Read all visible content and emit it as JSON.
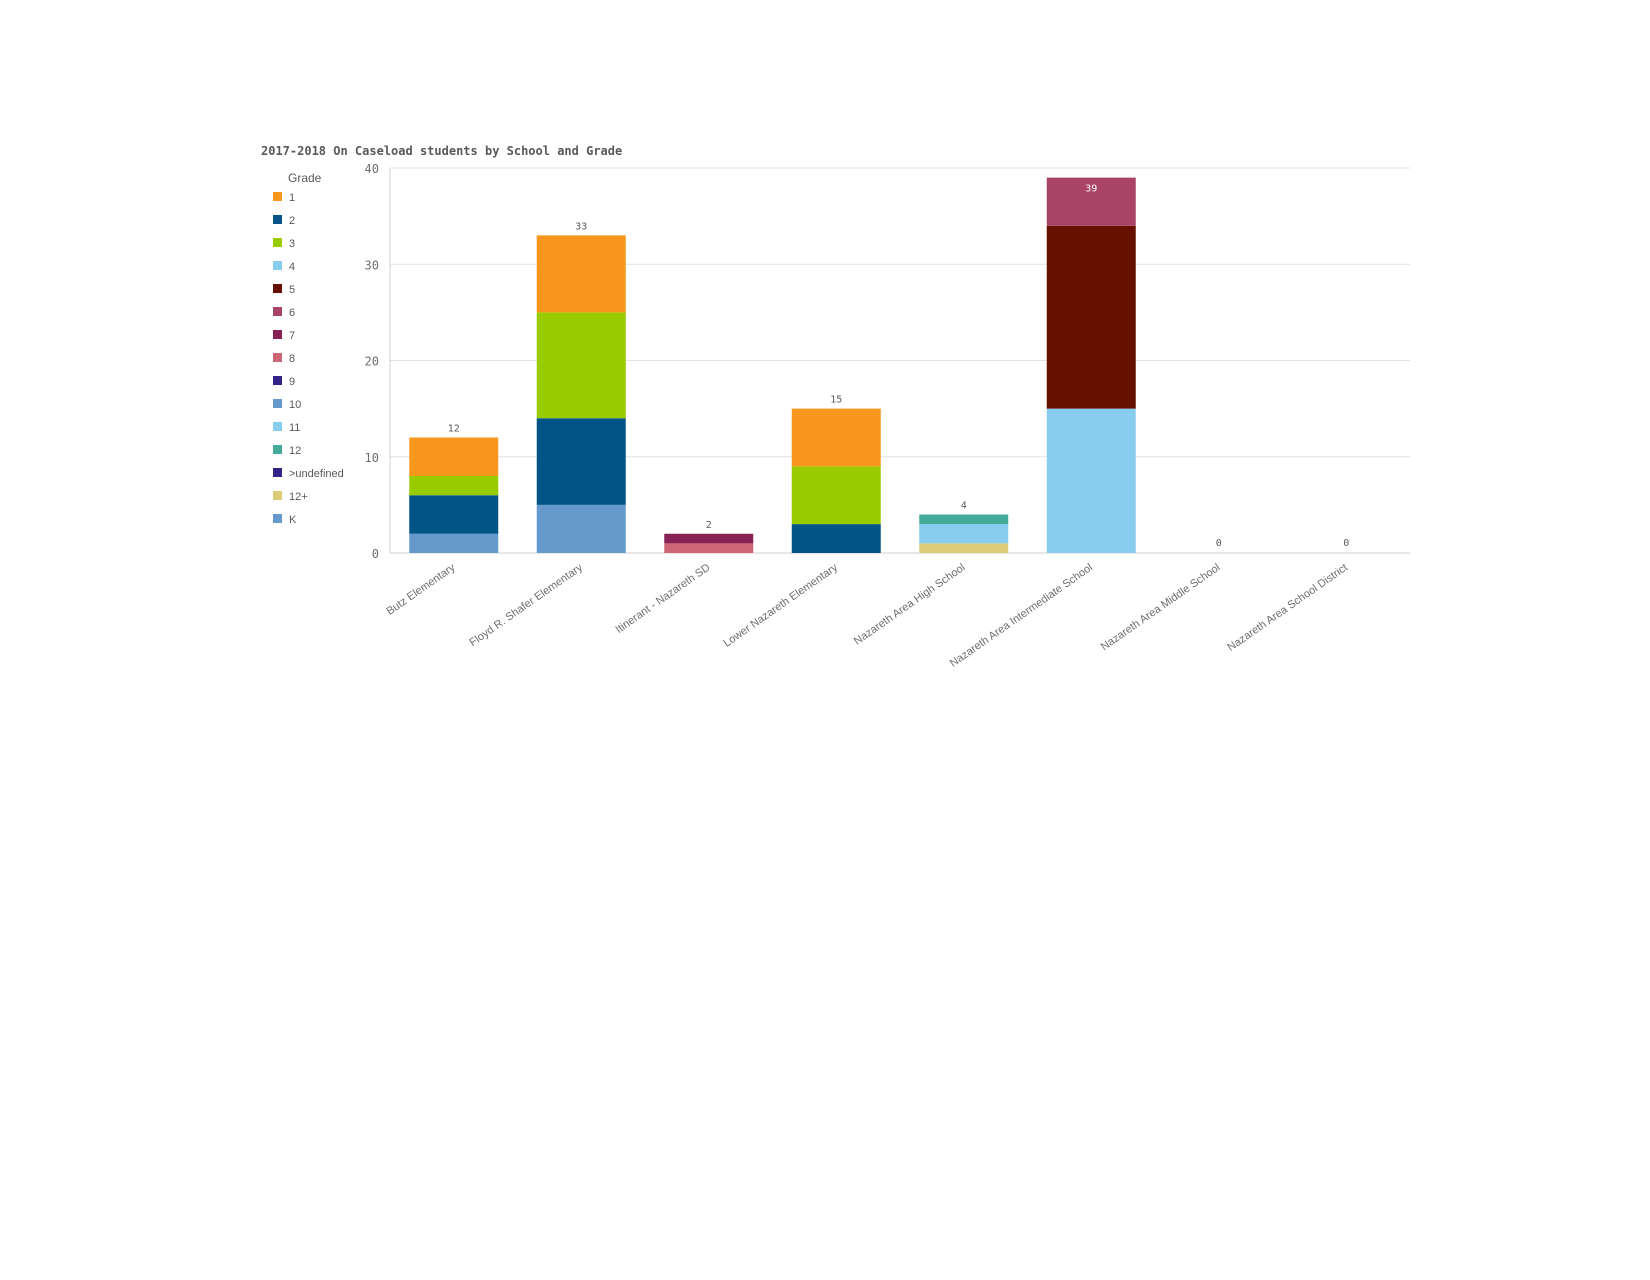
{
  "chart_data": {
    "type": "bar",
    "stacked": true,
    "title": "2017-2018 On Caseload students by School and Grade",
    "legend_title": "Grade",
    "legend_position": "left",
    "grid": true,
    "ylim": [
      0,
      40
    ],
    "yticks": [
      "0",
      "10",
      "20",
      "30",
      "40"
    ],
    "categories": [
      "Butz Elementary",
      "Floyd R. Shafer Elementary",
      "Itinerant - Nazareth SD",
      "Lower Nazareth Elementary",
      "Nazareth Area High School",
      "Nazareth Area Intermediate School",
      "Nazareth Area Middle School",
      "Nazareth Area School District"
    ],
    "totals": [
      "12",
      "33",
      "2",
      "15",
      "4",
      "39",
      "0",
      "0"
    ],
    "series": [
      {
        "name": "1",
        "color": "#f8961e",
        "values": [
          4,
          8,
          0,
          6,
          0,
          0,
          0,
          0
        ]
      },
      {
        "name": "2",
        "color": "#005586",
        "values": [
          4,
          9,
          0,
          3,
          0,
          0,
          0,
          0
        ]
      },
      {
        "name": "3",
        "color": "#99cc00",
        "values": [
          2,
          11,
          0,
          6,
          0,
          0,
          0,
          0
        ]
      },
      {
        "name": "4",
        "color": "#88ccee",
        "values": [
          0,
          0,
          0,
          0,
          0,
          15,
          0,
          0
        ]
      },
      {
        "name": "5",
        "color": "#661100",
        "values": [
          0,
          0,
          0,
          0,
          0,
          19,
          0,
          0
        ]
      },
      {
        "name": "6",
        "color": "#aa4466",
        "values": [
          0,
          0,
          0,
          0,
          0,
          5,
          0,
          0
        ]
      },
      {
        "name": "7",
        "color": "#882255",
        "values": [
          0,
          0,
          1,
          0,
          0,
          0,
          0,
          0
        ]
      },
      {
        "name": "8",
        "color": "#cc6677",
        "values": [
          0,
          0,
          1,
          0,
          0,
          0,
          0,
          0
        ]
      },
      {
        "name": "9",
        "color": "#332288",
        "values": [
          0,
          0,
          0,
          0,
          0,
          0,
          0,
          0
        ]
      },
      {
        "name": "10",
        "color": "#6699cc",
        "values": [
          0,
          0,
          0,
          0,
          0,
          0,
          0,
          0
        ]
      },
      {
        "name": "11",
        "color": "#88ccee",
        "values": [
          0,
          0,
          0,
          0,
          2,
          0,
          0,
          0
        ]
      },
      {
        "name": "12",
        "color": "#44aa99",
        "values": [
          0,
          0,
          0,
          0,
          1,
          0,
          0,
          0
        ]
      },
      {
        "name": ">undefined",
        "color": "#332288",
        "values": [
          0,
          0,
          0,
          0,
          0,
          0,
          0,
          0
        ]
      },
      {
        "name": "12+",
        "color": "#ddcc77",
        "values": [
          0,
          0,
          0,
          0,
          1,
          0,
          0,
          0
        ]
      },
      {
        "name": "K",
        "color": "#6699cc",
        "values": [
          2,
          5,
          0,
          0,
          0,
          0,
          0,
          0
        ]
      }
    ],
    "stack_order": [
      "K",
      "12+",
      "8",
      "7",
      "11",
      "12",
      "4",
      "5",
      "6",
      "2",
      "3",
      "1"
    ]
  }
}
